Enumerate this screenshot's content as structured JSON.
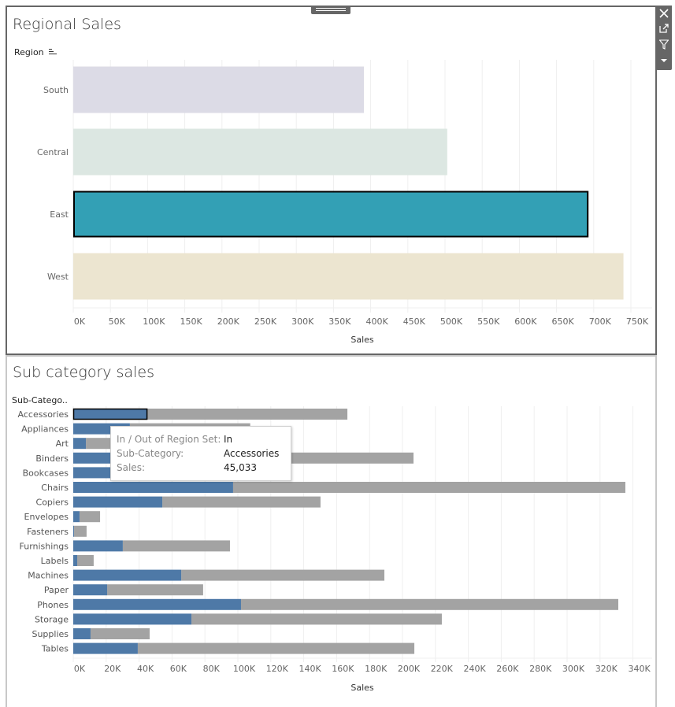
{
  "dashboard": {
    "toolbar": {
      "icons": [
        "close-icon",
        "popout-icon",
        "filter-icon",
        "more-options-icon"
      ]
    }
  },
  "colors": {
    "south": "#dcdbe6",
    "central": "#dce7e2",
    "east": "#33a0b5",
    "west": "#ece5d0",
    "in_set": "#4e79a7",
    "out_set": "#a3a3a3",
    "grid": "#efefef"
  },
  "chart_data": [
    {
      "type": "bar",
      "orientation": "horizontal",
      "title": "Regional Sales",
      "row_header": "Region",
      "categories": [
        "South",
        "Central",
        "East",
        "West"
      ],
      "values": [
        391000,
        503000,
        693000,
        740000
      ],
      "selected": "East",
      "xlabel": "Sales",
      "xlim": [
        0,
        780000
      ],
      "xticks": [
        0,
        50000,
        100000,
        150000,
        200000,
        250000,
        300000,
        350000,
        400000,
        450000,
        500000,
        550000,
        600000,
        650000,
        700000,
        750000
      ],
      "xtick_labels": [
        "0K",
        "50K",
        "100K",
        "150K",
        "200K",
        "250K",
        "300K",
        "350K",
        "400K",
        "450K",
        "500K",
        "550K",
        "600K",
        "650K",
        "700K",
        "750K"
      ],
      "grid": true
    },
    {
      "type": "bar",
      "orientation": "horizontal",
      "stacked": true,
      "title": "Sub category sales",
      "row_header": "Sub-Catego..",
      "categories": [
        "Accessories",
        "Appliances",
        "Art",
        "Binders",
        "Bookcases",
        "Chairs",
        "Copiers",
        "Envelopes",
        "Fasteners",
        "Furnishings",
        "Labels",
        "Machines",
        "Paper",
        "Phones",
        "Storage",
        "Supplies",
        "Tables"
      ],
      "series": [
        {
          "name": "In",
          "values": [
            45033,
            34400,
            7700,
            55000,
            35000,
            97100,
            54100,
            3800,
            500,
            30100,
            2400,
            65600,
            20600,
            101900,
            71800,
            10500,
            39200
          ]
        },
        {
          "name": "Out",
          "values": [
            121500,
            73100,
            19300,
            151700,
            80000,
            238300,
            96100,
            12500,
            7600,
            65100,
            10000,
            123400,
            58300,
            229200,
            152100,
            35900,
            168000
          ]
        }
      ],
      "xlabel": "Sales",
      "xlim": [
        0,
        350000
      ],
      "xticks": [
        0,
        20000,
        40000,
        60000,
        80000,
        100000,
        120000,
        140000,
        160000,
        180000,
        200000,
        220000,
        240000,
        260000,
        280000,
        300000,
        320000,
        340000
      ],
      "xtick_labels": [
        "0K",
        "20K",
        "40K",
        "60K",
        "80K",
        "100K",
        "120K",
        "140K",
        "160K",
        "180K",
        "200K",
        "220K",
        "240K",
        "260K",
        "280K",
        "300K",
        "320K",
        "340K"
      ],
      "grid": true,
      "tooltip": {
        "rows": [
          {
            "key": "In / Out of Region Set:",
            "value": "In"
          },
          {
            "key": "Sub-Category:",
            "value": "Accessories"
          },
          {
            "key": "Sales:",
            "value": "45,033"
          }
        ]
      }
    }
  ]
}
